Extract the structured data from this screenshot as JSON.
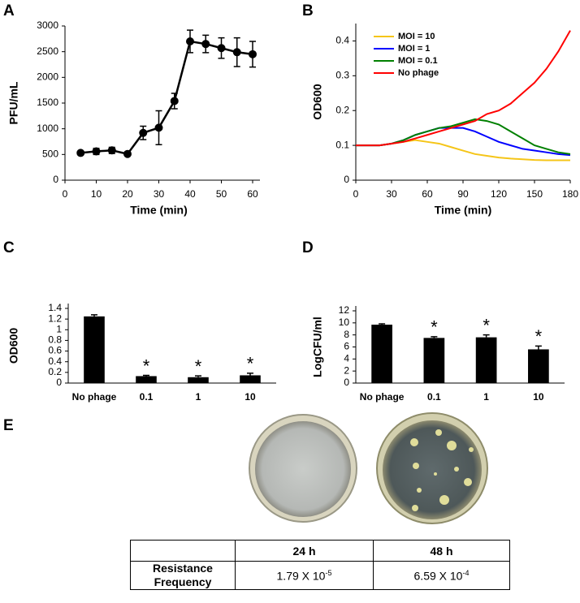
{
  "chart_data": [
    {
      "type": "line",
      "panel": "A",
      "xlabel": "Time (min)",
      "ylabel": "PFU/mL",
      "x": [
        5,
        10,
        15,
        20,
        25,
        30,
        35,
        40,
        45,
        50,
        55,
        60
      ],
      "values": [
        530,
        560,
        580,
        510,
        920,
        1020,
        1540,
        2700,
        2650,
        2570,
        2490,
        2450
      ],
      "errors": [
        30,
        60,
        60,
        30,
        130,
        330,
        150,
        220,
        170,
        200,
        280,
        250
      ],
      "color": "#000000",
      "markers": true,
      "xlim": [
        0,
        60
      ],
      "xticks": [
        0,
        10,
        20,
        30,
        40,
        50,
        60
      ],
      "ylim": [
        0,
        3000
      ],
      "yticks": [
        0,
        500,
        1000,
        1500,
        2000,
        2500,
        3000
      ]
    },
    {
      "type": "line",
      "panel": "B",
      "xlabel": "Time (min)",
      "ylabel": "OD600",
      "x": [
        0,
        10,
        20,
        30,
        40,
        50,
        60,
        70,
        80,
        90,
        100,
        110,
        120,
        130,
        140,
        150,
        160,
        170,
        180
      ],
      "series": [
        {
          "name": "MOI = 10",
          "color": "#f5c518",
          "values": [
            0.1,
            0.1,
            0.1,
            0.105,
            0.11,
            0.115,
            0.11,
            0.105,
            0.095,
            0.085,
            0.075,
            0.07,
            0.065,
            0.062,
            0.06,
            0.058,
            0.057,
            0.057,
            0.057
          ]
        },
        {
          "name": "MOI = 1",
          "color": "#0000ff",
          "values": [
            0.1,
            0.1,
            0.1,
            0.105,
            0.115,
            0.13,
            0.14,
            0.15,
            0.15,
            0.15,
            0.14,
            0.125,
            0.11,
            0.1,
            0.09,
            0.085,
            0.08,
            0.075,
            0.072
          ]
        },
        {
          "name": "MOI = 0.1",
          "color": "#008000",
          "values": [
            0.1,
            0.1,
            0.1,
            0.105,
            0.115,
            0.13,
            0.14,
            0.15,
            0.155,
            0.165,
            0.175,
            0.17,
            0.16,
            0.14,
            0.12,
            0.1,
            0.09,
            0.08,
            0.075
          ]
        },
        {
          "name": "No phage",
          "color": "#ff0000",
          "values": [
            0.1,
            0.1,
            0.1,
            0.105,
            0.11,
            0.12,
            0.13,
            0.14,
            0.15,
            0.16,
            0.17,
            0.19,
            0.2,
            0.22,
            0.25,
            0.28,
            0.32,
            0.37,
            0.43
          ]
        }
      ],
      "legend": "upper left",
      "xlim": [
        0,
        180
      ],
      "xticks": [
        0,
        30,
        60,
        90,
        120,
        150,
        180
      ],
      "ylim": [
        0,
        0.45
      ],
      "yticks": [
        0,
        0.1,
        0.2,
        0.3,
        0.4
      ]
    },
    {
      "type": "bar",
      "panel": "C",
      "ylabel": "OD600",
      "categories": [
        "No phage",
        "0.1",
        "1",
        "10"
      ],
      "values": [
        1.25,
        0.13,
        0.11,
        0.145
      ],
      "errors": [
        0.03,
        0.015,
        0.025,
        0.04
      ],
      "significance": [
        null,
        "*",
        "*",
        "*"
      ],
      "color": "#000000",
      "ylim": [
        0,
        1.4
      ],
      "yticks": [
        0,
        0.2,
        0.4,
        0.6,
        0.8,
        1,
        1.2,
        1.4
      ]
    },
    {
      "type": "bar",
      "panel": "D",
      "ylabel": "LogCFU/ml",
      "categories": [
        "No phage",
        "0.1",
        "1",
        "10"
      ],
      "values": [
        9.7,
        7.5,
        7.6,
        5.6
      ],
      "errors": [
        0.15,
        0.2,
        0.4,
        0.55
      ],
      "significance": [
        null,
        "*",
        "*",
        "*"
      ],
      "color": "#000000",
      "ylim": [
        0,
        12
      ],
      "yticks": [
        0,
        2,
        4,
        6,
        8,
        10,
        12
      ]
    }
  ],
  "panel_e": {
    "panel": "E",
    "table": {
      "header": [
        "24 h",
        "48 h"
      ],
      "row_label": "Resistance Frequency",
      "cells": [
        {
          "mantissa": "1.79 X 10",
          "exponent": "-5"
        },
        {
          "mantissa": "6.59 X 10",
          "exponent": "-4"
        }
      ]
    }
  }
}
